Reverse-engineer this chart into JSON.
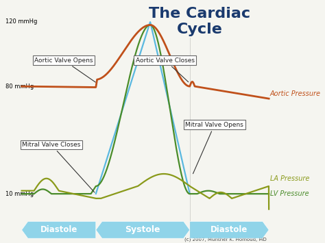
{
  "title": "The Cardiac\nCycle",
  "title_color": "#1a3a6e",
  "title_fontsize": 16,
  "bg_color": "#f5f5f0",
  "ylabel_120": "120 mmHg",
  "ylabel_80": "80 mmHg",
  "ylabel_10": "10 mmHg",
  "aortic_color": "#c0501a",
  "lv_color": "#4a8c2a",
  "la_color": "#8a9a1a",
  "blue_line_color": "#5ab8e0",
  "annotation_color": "#222222",
  "phase_color": "#7ecfe8",
  "label_aortic": "Aortic Pressure",
  "label_la": "LA Pressure",
  "label_lv": "LV Pressure",
  "annotation_aortic_opens": "Aortic Valve Opens",
  "annotation_aortic_closes": "Aortic Valve Closes",
  "annotation_mitral_opens": "Mitral Valve Opens",
  "annotation_mitral_closes": "Mitral Valve Closes",
  "phase_diastole1": "Diastole",
  "phase_systole": "Systole",
  "phase_diastole2": "Diastole",
  "copyright": "(c) 2007, Munther K. Homoud, MD"
}
